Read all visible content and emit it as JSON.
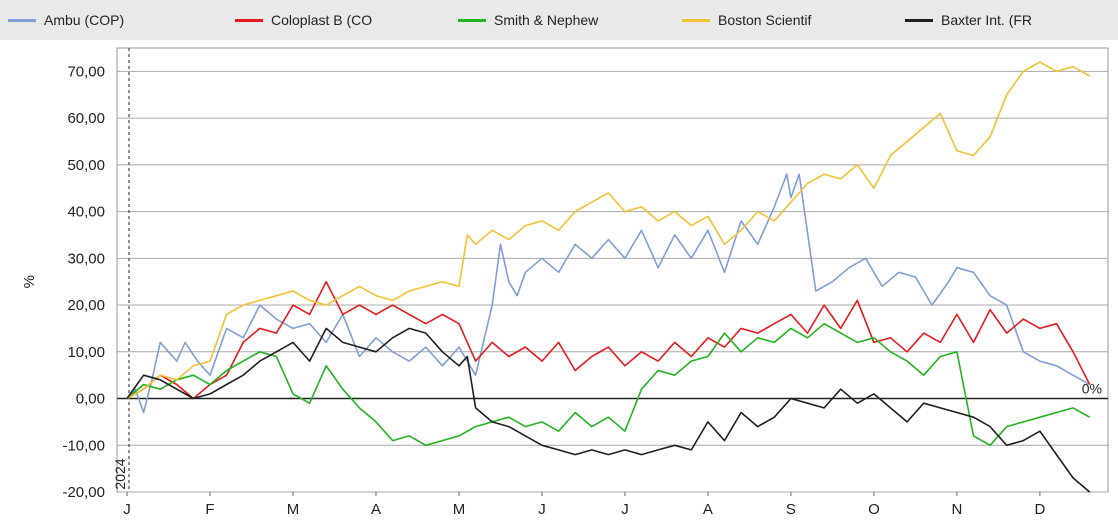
{
  "chart_data": {
    "type": "line",
    "title": "",
    "xlabel": "",
    "ylabel": "%",
    "ylim": [
      -20,
      75
    ],
    "grid": true,
    "legend_position": "top",
    "year_label": "2024",
    "baseline_label": "0%",
    "y_ticks": [
      -20,
      -10,
      0,
      10,
      20,
      30,
      40,
      50,
      60,
      70
    ],
    "y_tick_labels": [
      "-20,00",
      "-10,00",
      "0,00",
      "10,00",
      "20,00",
      "30,00",
      "40,00",
      "50,00",
      "60,00",
      "70,00"
    ],
    "x_tick_labels": [
      "J",
      "F",
      "M",
      "A",
      "M",
      "J",
      "J",
      "A",
      "S",
      "O",
      "N",
      "D"
    ],
    "x_tick_positions": [
      0,
      1,
      2,
      3,
      4,
      5,
      6,
      7,
      8,
      9,
      10,
      11
    ],
    "xlim": [
      0,
      11.7
    ],
    "series": [
      {
        "name": "Ambu (COP)",
        "color": "#7f9fd6",
        "x": [
          0,
          0.1,
          0.2,
          0.3,
          0.4,
          0.5,
          0.6,
          0.7,
          0.85,
          1.0,
          1.2,
          1.4,
          1.6,
          1.8,
          2.0,
          2.2,
          2.4,
          2.6,
          2.8,
          3.0,
          3.2,
          3.4,
          3.6,
          3.8,
          4.0,
          4.2,
          4.4,
          4.5,
          4.6,
          4.7,
          4.8,
          5.0,
          5.2,
          5.4,
          5.6,
          5.8,
          6.0,
          6.2,
          6.4,
          6.6,
          6.8,
          7.0,
          7.2,
          7.4,
          7.6,
          7.8,
          7.95,
          8.0,
          8.1,
          8.3,
          8.5,
          8.7,
          8.9,
          9.1,
          9.3,
          9.5,
          9.7,
          9.9,
          10.0,
          10.2,
          10.4,
          10.6,
          10.8,
          11.0,
          11.2,
          11.4,
          11.6
        ],
        "values": [
          0,
          2,
          -3,
          4,
          12,
          10,
          8,
          12,
          8,
          5,
          15,
          13,
          20,
          17,
          15,
          16,
          12,
          18,
          9,
          13,
          10,
          8,
          11,
          7,
          11,
          5,
          20,
          33,
          25,
          22,
          27,
          30,
          27,
          33,
          30,
          34,
          30,
          36,
          28,
          35,
          30,
          36,
          27,
          38,
          33,
          41,
          48,
          43,
          48,
          23,
          25,
          28,
          30,
          24,
          27,
          26,
          20,
          25,
          28,
          27,
          22,
          20,
          10,
          8,
          7,
          5,
          3
        ]
      },
      {
        "name": "Coloplast B (CO",
        "color": "#e8191d",
        "x": [
          0,
          0.2,
          0.4,
          0.6,
          0.8,
          1.0,
          1.2,
          1.4,
          1.6,
          1.8,
          2.0,
          2.2,
          2.4,
          2.6,
          2.8,
          3.0,
          3.2,
          3.4,
          3.6,
          3.8,
          4.0,
          4.2,
          4.4,
          4.6,
          4.8,
          5.0,
          5.2,
          5.4,
          5.6,
          5.8,
          6.0,
          6.2,
          6.4,
          6.6,
          6.8,
          7.0,
          7.2,
          7.4,
          7.6,
          7.8,
          8.0,
          8.2,
          8.4,
          8.6,
          8.8,
          9.0,
          9.2,
          9.4,
          9.6,
          9.8,
          10.0,
          10.2,
          10.4,
          10.6,
          10.8,
          11.0,
          11.2,
          11.4,
          11.6
        ],
        "values": [
          0,
          2,
          5,
          3,
          0,
          3,
          5,
          12,
          15,
          14,
          20,
          18,
          25,
          18,
          20,
          18,
          20,
          18,
          16,
          18,
          16,
          8,
          12,
          9,
          11,
          8,
          12,
          6,
          9,
          11,
          7,
          10,
          8,
          12,
          9,
          13,
          11,
          15,
          14,
          16,
          18,
          14,
          20,
          15,
          21,
          12,
          13,
          10,
          14,
          12,
          18,
          12,
          19,
          14,
          17,
          15,
          16,
          10,
          3
        ]
      },
      {
        "name": "Smith & Nephew",
        "color": "#22b31f",
        "x": [
          0,
          0.2,
          0.4,
          0.6,
          0.8,
          1.0,
          1.2,
          1.4,
          1.6,
          1.8,
          2.0,
          2.2,
          2.4,
          2.6,
          2.8,
          3.0,
          3.2,
          3.4,
          3.6,
          3.8,
          4.0,
          4.2,
          4.4,
          4.6,
          4.8,
          5.0,
          5.2,
          5.4,
          5.6,
          5.8,
          6.0,
          6.2,
          6.4,
          6.6,
          6.8,
          7.0,
          7.2,
          7.4,
          7.6,
          7.8,
          8.0,
          8.2,
          8.4,
          8.6,
          8.8,
          9.0,
          9.2,
          9.4,
          9.6,
          9.8,
          10.0,
          10.2,
          10.4,
          10.6,
          10.8,
          11.0,
          11.2,
          11.4,
          11.6
        ],
        "values": [
          0,
          3,
          2,
          4,
          5,
          3,
          6,
          8,
          10,
          9,
          1,
          -1,
          7,
          2,
          -2,
          -5,
          -9,
          -8,
          -10,
          -9,
          -8,
          -6,
          -5,
          -4,
          -6,
          -5,
          -7,
          -3,
          -6,
          -4,
          -7,
          2,
          6,
          5,
          8,
          9,
          14,
          10,
          13,
          12,
          15,
          13,
          16,
          14,
          12,
          13,
          10,
          8,
          5,
          9,
          10,
          -8,
          -10,
          -6,
          -5,
          -4,
          -3,
          -2,
          -4
        ]
      },
      {
        "name": "Boston Scientif",
        "color": "#f3c135",
        "x": [
          0,
          0.2,
          0.4,
          0.6,
          0.8,
          1.0,
          1.2,
          1.4,
          1.6,
          1.8,
          2.0,
          2.2,
          2.4,
          2.6,
          2.8,
          3.0,
          3.2,
          3.4,
          3.6,
          3.8,
          4.0,
          4.1,
          4.2,
          4.4,
          4.6,
          4.8,
          5.0,
          5.2,
          5.4,
          5.6,
          5.8,
          6.0,
          6.2,
          6.4,
          6.6,
          6.8,
          7.0,
          7.2,
          7.4,
          7.6,
          7.8,
          8.0,
          8.2,
          8.4,
          8.6,
          8.8,
          9.0,
          9.2,
          9.4,
          9.6,
          9.8,
          10.0,
          10.2,
          10.4,
          10.6,
          10.8,
          11.0,
          11.2,
          11.4,
          11.6
        ],
        "values": [
          0,
          2,
          5,
          4,
          7,
          8,
          18,
          20,
          21,
          22,
          23,
          21,
          20,
          22,
          24,
          22,
          21,
          23,
          24,
          25,
          24,
          35,
          33,
          36,
          34,
          37,
          38,
          36,
          40,
          42,
          44,
          40,
          41,
          38,
          40,
          37,
          39,
          33,
          36,
          40,
          38,
          42,
          46,
          48,
          47,
          50,
          45,
          52,
          55,
          58,
          61,
          53,
          52,
          56,
          65,
          70,
          72,
          70,
          71,
          69
        ]
      },
      {
        "name": "Baxter Int. (FR",
        "color": "#1f1f1f",
        "x": [
          0,
          0.2,
          0.4,
          0.6,
          0.8,
          1.0,
          1.2,
          1.4,
          1.6,
          1.8,
          2.0,
          2.2,
          2.4,
          2.6,
          2.8,
          3.0,
          3.2,
          3.4,
          3.6,
          3.8,
          4.0,
          4.1,
          4.2,
          4.4,
          4.6,
          4.8,
          5.0,
          5.2,
          5.4,
          5.6,
          5.8,
          6.0,
          6.2,
          6.4,
          6.6,
          6.8,
          7.0,
          7.2,
          7.4,
          7.6,
          7.8,
          8.0,
          8.2,
          8.4,
          8.6,
          8.8,
          9.0,
          9.2,
          9.4,
          9.6,
          9.8,
          10.0,
          10.2,
          10.4,
          10.6,
          10.8,
          11.0,
          11.2,
          11.4,
          11.6
        ],
        "values": [
          0,
          5,
          4,
          2,
          0,
          1,
          3,
          5,
          8,
          10,
          12,
          8,
          15,
          12,
          11,
          10,
          13,
          15,
          14,
          10,
          7,
          9,
          -2,
          -5,
          -6,
          -8,
          -10,
          -11,
          -12,
          -11,
          -12,
          -11,
          -12,
          -11,
          -10,
          -11,
          -5,
          -9,
          -3,
          -6,
          -4,
          0,
          -1,
          -2,
          2,
          -1,
          1,
          -2,
          -5,
          -1,
          -2,
          -3,
          -4,
          -6,
          -10,
          -9,
          -7,
          -12,
          -17,
          -20
        ]
      }
    ]
  }
}
